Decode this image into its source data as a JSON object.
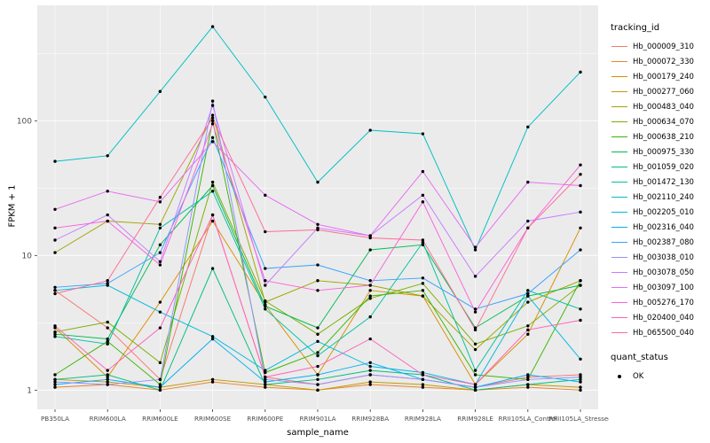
{
  "figure": {
    "background": "#FFFFFF",
    "panel_background": "#EBEBEB",
    "grid_color": "#FFFFFF",
    "tick_label_color": "#4D4D4D",
    "point_color": "#000000"
  },
  "chart_data": {
    "type": "line",
    "title": "",
    "xlabel": "sample_name",
    "ylabel": "FPKM + 1",
    "y_scale": "log10",
    "y_ticks": [
      1,
      10,
      100
    ],
    "y_minor_ticks": [
      3.162,
      31.62,
      316.2
    ],
    "ylim": [
      0.72,
      720
    ],
    "grid": true,
    "legend_position": "right",
    "categories": [
      "PB350LA",
      "RRIM600LA",
      "RRIM600LE",
      "RRIM600SE",
      "RRIM600PE",
      "RRIM901LA",
      "RRIM928BA",
      "RRIM928LA",
      "RRIM928LE",
      "RRII105LA_Control",
      "RRII105LA_Stressed"
    ],
    "series": [
      {
        "name": "Hb_000009_310",
        "color": "#F8766D",
        "values": [
          5.5,
          2.9,
          1.2,
          20,
          1.25,
          1.1,
          1.3,
          1.2,
          1.05,
          1.25,
          1.3
        ]
      },
      {
        "name": "Hb_000072_330",
        "color": "#EA8331",
        "values": [
          1.05,
          1.1,
          1.0,
          1.15,
          1.05,
          1.0,
          1.1,
          1.05,
          1.0,
          1.05,
          1.0
        ]
      },
      {
        "name": "Hb_000179_240",
        "color": "#D89000",
        "values": [
          2.9,
          1.25,
          4.5,
          18,
          4.3,
          1.3,
          5.5,
          5.0,
          1.1,
          2.6,
          16
        ]
      },
      {
        "name": "Hb_000277_060",
        "color": "#C09B00",
        "values": [
          1.2,
          1.15,
          1.05,
          1.2,
          1.1,
          1.0,
          1.15,
          1.1,
          1.0,
          1.1,
          1.05
        ]
      },
      {
        "name": "Hb_000483_040",
        "color": "#A3A500",
        "values": [
          10.5,
          18,
          17,
          110,
          4.5,
          6.5,
          6.0,
          5.0,
          2.0,
          4.5,
          6.5
        ]
      },
      {
        "name": "Hb_000634_070",
        "color": "#7CAE00",
        "values": [
          2.7,
          3.2,
          1.6,
          35,
          4.6,
          2.6,
          4.8,
          6.2,
          2.2,
          3.0,
          6.0
        ]
      },
      {
        "name": "Hb_000638_210",
        "color": "#39B600",
        "values": [
          1.3,
          2.3,
          1.1,
          100,
          1.35,
          1.9,
          5.0,
          5.5,
          1.3,
          1.2,
          6.5
        ]
      },
      {
        "name": "Hb_000975_330",
        "color": "#00BB4E",
        "values": [
          2.6,
          2.4,
          12,
          33,
          4.2,
          2.9,
          11,
          12,
          2.9,
          5.0,
          6.0
        ]
      },
      {
        "name": "Hb_001059_020",
        "color": "#00BF7D",
        "values": [
          1.2,
          1.3,
          1.0,
          8.0,
          1.1,
          1.2,
          1.4,
          1.3,
          1.0,
          1.1,
          1.2
        ]
      },
      {
        "name": "Hb_001472_130",
        "color": "#00C1A3",
        "values": [
          2.5,
          2.2,
          16,
          30,
          4.0,
          1.8,
          3.5,
          12.5,
          1.4,
          5.5,
          4.0
        ]
      },
      {
        "name": "Hb_002110_240",
        "color": "#00BFC4",
        "values": [
          50,
          55,
          165,
          500,
          150,
          35,
          85,
          80,
          11,
          90,
          230
        ]
      },
      {
        "name": "Hb_002205_010",
        "color": "#00BAE0",
        "values": [
          5.5,
          6.0,
          3.8,
          2.5,
          1.4,
          2.3,
          1.5,
          1.35,
          1.1,
          5.0,
          1.7
        ]
      },
      {
        "name": "Hb_002316_040",
        "color": "#00B0F6",
        "values": [
          1.1,
          1.2,
          1.05,
          2.4,
          1.15,
          1.3,
          1.6,
          1.2,
          1.05,
          1.3,
          1.15
        ]
      },
      {
        "name": "Hb_002387_080",
        "color": "#35A2FF",
        "values": [
          5.8,
          6.2,
          10.5,
          75,
          8.0,
          8.5,
          6.5,
          6.8,
          4.0,
          5.2,
          11
        ]
      },
      {
        "name": "Hb_003038_010",
        "color": "#9590FF",
        "values": [
          1.15,
          1.1,
          1.2,
          140,
          1.2,
          1.1,
          1.3,
          1.2,
          1.05,
          1.2,
          1.25
        ]
      },
      {
        "name": "Hb_003078_050",
        "color": "#C77CFF",
        "values": [
          13,
          20,
          9.0,
          130,
          6.0,
          16,
          14,
          28,
          7.0,
          18,
          21
        ]
      },
      {
        "name": "Hb_003097_100",
        "color": "#E76BF3",
        "values": [
          22,
          30,
          25,
          70,
          28,
          17,
          14,
          42,
          11.5,
          35,
          33
        ]
      },
      {
        "name": "Hb_005276_170",
        "color": "#FA62DB",
        "values": [
          16,
          18,
          8.5,
          95,
          6.5,
          5.5,
          6.0,
          25,
          3.8,
          16,
          47
        ]
      },
      {
        "name": "Hb_020400_040",
        "color": "#FF62BC",
        "values": [
          3.0,
          1.4,
          2.9,
          20,
          1.25,
          1.5,
          2.4,
          1.3,
          1.1,
          2.8,
          3.3
        ]
      },
      {
        "name": "Hb_065500_040",
        "color": "#FF6A98",
        "values": [
          5.2,
          6.5,
          27,
          105,
          15,
          15.5,
          13.5,
          13,
          2.8,
          16,
          40
        ]
      }
    ]
  },
  "legend": {
    "tracking_title": "tracking_id",
    "quant_title": "quant_status",
    "quant_items": [
      {
        "label": "OK"
      }
    ]
  }
}
